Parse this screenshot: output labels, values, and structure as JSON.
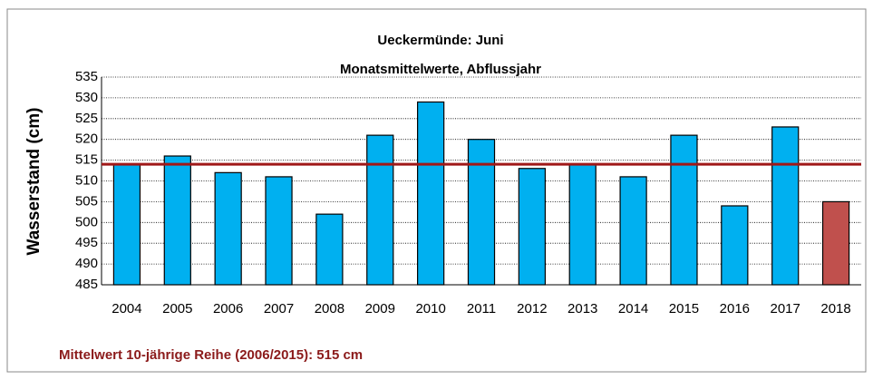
{
  "chart_data": {
    "type": "bar",
    "title": "Ueckermünde: Juni",
    "subtitle": "Monatsmittelwerte, Abflussjahr",
    "y_label": "Wasserstand (cm)",
    "footnote": "Mittelwert 10-jährige Reihe (2006/2015): 515 cm",
    "categories": [
      "2004",
      "2005",
      "2006",
      "2007",
      "2008",
      "2009",
      "2010",
      "2011",
      "2012",
      "2013",
      "2014",
      "2015",
      "2016",
      "2017",
      "2018"
    ],
    "values": [
      514,
      516,
      512,
      511,
      502,
      521,
      529,
      520,
      513,
      514,
      511,
      521,
      504,
      523,
      505
    ],
    "colors": [
      "#00b0f0",
      "#00b0f0",
      "#00b0f0",
      "#00b0f0",
      "#00b0f0",
      "#00b0f0",
      "#00b0f0",
      "#00b0f0",
      "#00b0f0",
      "#00b0f0",
      "#00b0f0",
      "#00b0f0",
      "#00b0f0",
      "#00b0f0",
      "#c0504d"
    ],
    "mean_line": 514,
    "mean_color": "#a01818",
    "ylim": [
      485,
      535
    ],
    "yticks": [
      485,
      490,
      495,
      500,
      505,
      510,
      515,
      520,
      525,
      530,
      535
    ],
    "grid": true
  }
}
